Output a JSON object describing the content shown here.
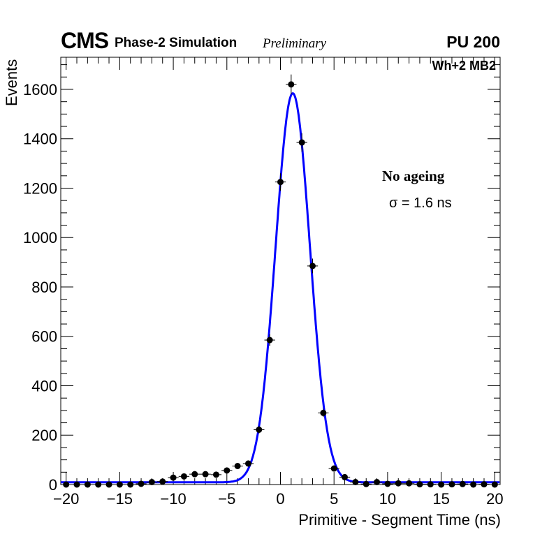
{
  "header": {
    "experiment": "CMS",
    "subtitle": "Phase-2 Simulation",
    "status": "Preliminary",
    "pileup": "PU 200",
    "chamber": "Wh+2 MB2"
  },
  "annotations": {
    "condition": "No ageing",
    "resolution": "σ = 1.6 ns"
  },
  "chart_data": {
    "type": "scatter",
    "title": "",
    "xlabel": "Primitive - Segment Time (ns)",
    "ylabel": "Events",
    "xlim": [
      -20.5,
      20.5
    ],
    "ylim": [
      0,
      1730
    ],
    "xticks": [
      -20,
      -15,
      -10,
      -5,
      0,
      5,
      10,
      15,
      20
    ],
    "xtick_labels": [
      "−20",
      "−15",
      "−10",
      "−5",
      "0",
      "5",
      "10",
      "15",
      "20"
    ],
    "yticks": [
      0,
      200,
      400,
      600,
      800,
      1000,
      1200,
      1400,
      1600
    ],
    "ytick_labels": [
      "0",
      "200",
      "400",
      "600",
      "800",
      "1000",
      "1200",
      "1400",
      "1600"
    ],
    "grid": false,
    "series": [
      {
        "name": "Simulation",
        "type": "points-with-errors",
        "color": "#000000",
        "x": [
          -20,
          -19,
          -18,
          -17,
          -16,
          -15,
          -14,
          -13,
          -12,
          -11,
          -10,
          -9,
          -8,
          -7,
          -6,
          -5,
          -4,
          -3,
          -2,
          -1,
          0,
          1,
          2,
          3,
          4,
          5,
          6,
          7,
          8,
          9,
          10,
          11,
          12,
          13,
          14,
          15,
          16,
          17,
          18,
          19,
          20
        ],
        "y": [
          0,
          0,
          0,
          0,
          0,
          0,
          0,
          3,
          10,
          12,
          28,
          33,
          42,
          42,
          40,
          57,
          75,
          85,
          222,
          585,
          1225,
          1620,
          1385,
          885,
          290,
          65,
          30,
          10,
          2,
          10,
          3,
          5,
          5,
          1,
          1,
          0,
          1,
          2,
          0,
          1,
          0
        ]
      },
      {
        "name": "Gaussian fit",
        "type": "line",
        "color": "#0000ff",
        "function": "gaussian+constant",
        "amplitude": 1575,
        "mean": 1.15,
        "sigma": 1.6,
        "constant": 9
      }
    ]
  }
}
